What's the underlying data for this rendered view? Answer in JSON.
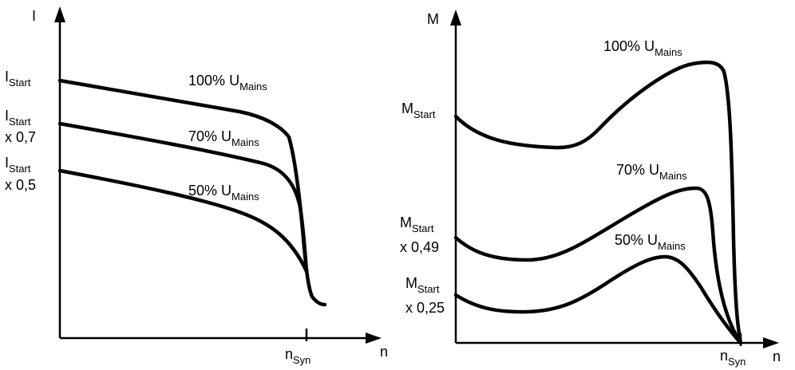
{
  "current_chart": {
    "y_axis": "I",
    "x_axis": "n",
    "x_tick": {
      "main": "n",
      "sub": "Syn"
    },
    "y_levels": [
      {
        "main": "I",
        "sub": "Start",
        "suffix": ""
      },
      {
        "main": "I",
        "sub": "Start",
        "suffix": "x 0,7"
      },
      {
        "main": "I",
        "sub": "Start",
        "suffix": "x 0,5"
      }
    ],
    "curves": [
      {
        "pct": "100%",
        "main": "U",
        "sub": "Mains"
      },
      {
        "pct": "70%",
        "main": "U",
        "sub": "Mains"
      },
      {
        "pct": "50%",
        "main": "U",
        "sub": "Mains"
      }
    ]
  },
  "torque_chart": {
    "y_axis": "M",
    "x_axis": "n",
    "x_tick": {
      "main": "n",
      "sub": "Syn"
    },
    "y_levels": [
      {
        "main": "M",
        "sub": "Start",
        "suffix": ""
      },
      {
        "main": "M",
        "sub": "Start",
        "suffix": "x 0,49"
      },
      {
        "main": "M",
        "sub": "Start",
        "suffix": "x 0,25"
      }
    ],
    "curves": [
      {
        "pct": "100%",
        "main": "U",
        "sub": "Mains"
      },
      {
        "pct": "70%",
        "main": "U",
        "sub": "Mains"
      },
      {
        "pct": "50%",
        "main": "U",
        "sub": "Mains"
      }
    ]
  }
}
